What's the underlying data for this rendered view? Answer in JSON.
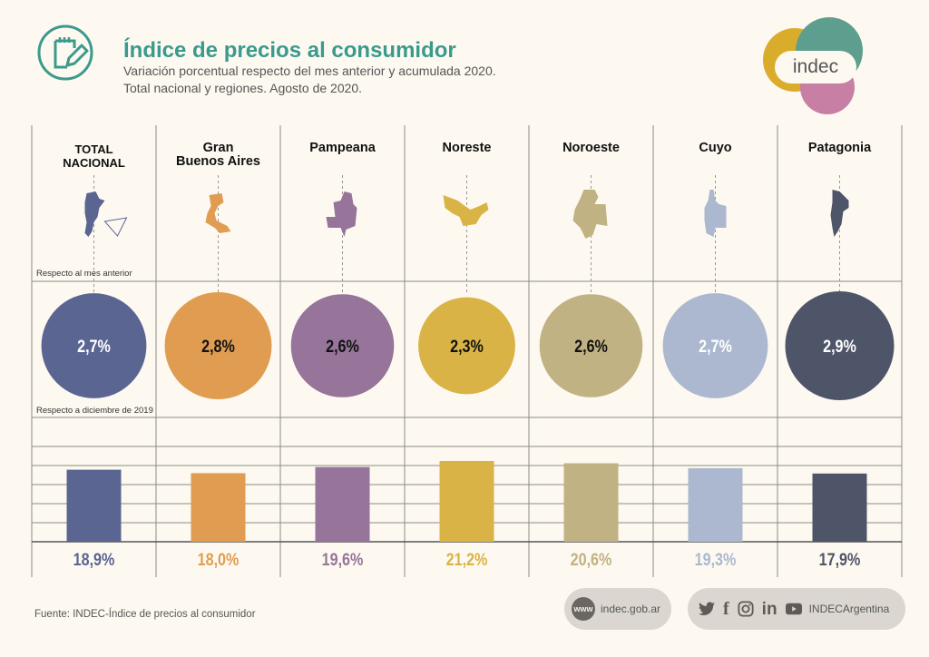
{
  "header": {
    "title": "Índice de precios al consumidor",
    "subtitle_line1": "Variación porcentual respecto del mes anterior y acumulada 2020.",
    "subtitle_line2": "Total nacional y regiones. Agosto de 2020.",
    "icon": "notepad-pencil-icon",
    "accent_color": "#3a9a8c"
  },
  "logo": {
    "text": "indec",
    "colors": [
      "#d9ad2b",
      "#5e9e8e",
      "#c77fa3"
    ]
  },
  "chart_data": {
    "type": "bar",
    "title": "Índice de precios al consumidor",
    "subtitle": "Variación porcentual respecto del mes anterior y acumulada 2020. Total nacional y regiones. Agosto de 2020.",
    "categories": [
      "TOTAL NACIONAL",
      "Gran Buenos Aires",
      "Pampeana",
      "Noreste",
      "Noroeste",
      "Cuyo",
      "Patagonia"
    ],
    "category_lines": [
      [
        "TOTAL",
        "NACIONAL"
      ],
      [
        "Gran",
        "Buenos Aires"
      ],
      [
        "Pampeana"
      ],
      [
        "Noreste"
      ],
      [
        "Noroeste"
      ],
      [
        "Cuyo"
      ],
      [
        "Patagonia"
      ]
    ],
    "colors": [
      "#5b6592",
      "#e09d52",
      "#977499",
      "#d9b346",
      "#c1b283",
      "#abb8cf",
      "#4f5569"
    ],
    "circle_text_colors": [
      "#ffffff",
      "#111111",
      "#111111",
      "#111111",
      "#111111",
      "#ffffff",
      "#ffffff"
    ],
    "series": [
      {
        "name": "Respecto al mes anterior",
        "mark": "circle",
        "values": [
          2.7,
          2.8,
          2.6,
          2.3,
          2.6,
          2.7,
          2.9
        ],
        "labels": [
          "2,7%",
          "2,8%",
          "2,6%",
          "2,3%",
          "2,6%",
          "2,7%",
          "2,9%"
        ]
      },
      {
        "name": "Respecto a diciembre de 2019",
        "mark": "bar",
        "values": [
          18.9,
          18.0,
          19.6,
          21.2,
          20.6,
          19.3,
          17.9
        ],
        "labels": [
          "18,9%",
          "18,0%",
          "19,6%",
          "21,2%",
          "20,6%",
          "19,3%",
          "17,9%"
        ]
      }
    ],
    "xlabel": "",
    "ylabel": "",
    "ylim": [
      0,
      30
    ],
    "grid": true,
    "map_icons": [
      "argentina-map-icon",
      "gran-buenos-aires-map-icon",
      "pampeana-map-icon",
      "noreste-map-icon",
      "noroeste-map-icon",
      "cuyo-map-icon",
      "patagonia-map-icon"
    ]
  },
  "footer": {
    "source": "Fuente: INDEC-Índice de precios al consumidor",
    "website_icon": "www",
    "website": "indec.gob.ar",
    "social_handle": "INDECArgentina",
    "social_icons": [
      "twitter-icon",
      "facebook-icon",
      "instagram-icon",
      "linkedin-icon",
      "youtube-icon"
    ]
  }
}
